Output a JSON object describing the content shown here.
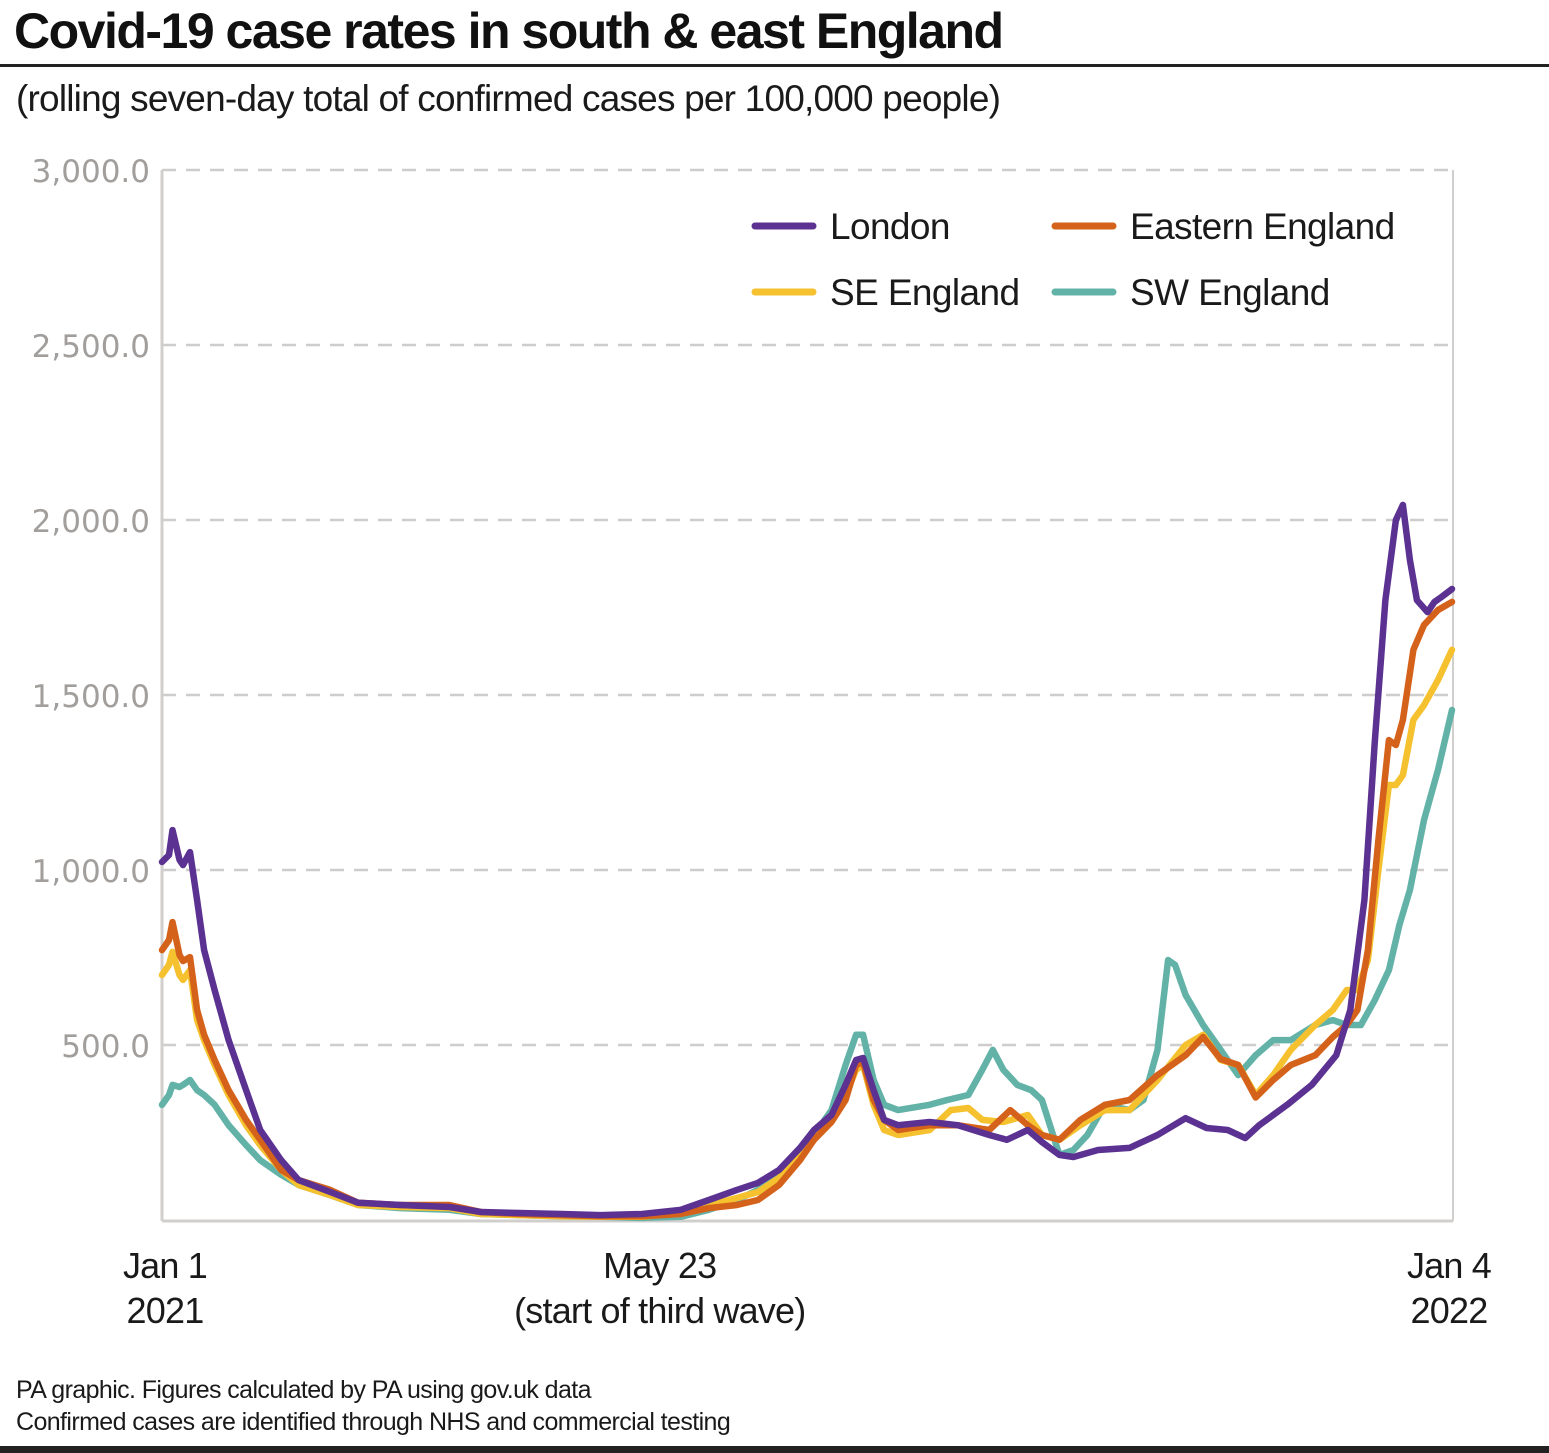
{
  "header": {
    "title": "Covid-19 case rates in south & east England",
    "subtitle": "(rolling seven-day total of confirmed cases per 100,000 people)"
  },
  "footer": {
    "line1": "PA graphic. Figures calculated by PA using gov.uk data",
    "line2": "Confirmed cases are identified through NHS and commercial testing"
  },
  "chart_data": {
    "type": "line",
    "title": "Covid-19 case rates in south & east England",
    "subtitle": "(rolling seven-day total of confirmed cases per 100,000 people)",
    "xlabel": "",
    "ylabel": "",
    "x_unit": "days since Jan 1 2021",
    "xlim": [
      0,
      368
    ],
    "ylim": [
      0,
      3000
    ],
    "grid": "horizontal dashed",
    "legend_position": "top-right",
    "y_ticks": [
      {
        "value": 500,
        "label": "500.0"
      },
      {
        "value": 1000,
        "label": "1,000.0"
      },
      {
        "value": 1500,
        "label": "1,500.0"
      },
      {
        "value": 2000,
        "label": "2,000.0"
      },
      {
        "value": 2500,
        "label": "2,500.0"
      },
      {
        "value": 3000,
        "label": "3,000.0"
      }
    ],
    "x_ticks": [
      {
        "value": 0,
        "line1": "Jan 1",
        "line2": "2021"
      },
      {
        "value": 142,
        "line1": "May 23",
        "line2": "(start of third wave)"
      },
      {
        "value": 368,
        "line1": "Jan 4",
        "line2": "2022"
      }
    ],
    "series": [
      {
        "name": "London",
        "color": "#5b3291",
        "points": [
          [
            0,
            1023
          ],
          [
            2,
            1043
          ],
          [
            3,
            1114
          ],
          [
            5,
            1029
          ],
          [
            6,
            1014
          ],
          [
            8,
            1051
          ],
          [
            10,
            914
          ],
          [
            12,
            771
          ],
          [
            15,
            657
          ],
          [
            19,
            514
          ],
          [
            24,
            371
          ],
          [
            28,
            257
          ],
          [
            34,
            171
          ],
          [
            39,
            114
          ],
          [
            48,
            80
          ],
          [
            56,
            49
          ],
          [
            68,
            43
          ],
          [
            82,
            37
          ],
          [
            91,
            23
          ],
          [
            102,
            20
          ],
          [
            114,
            17
          ],
          [
            125,
            14
          ],
          [
            137,
            17
          ],
          [
            148,
            29
          ],
          [
            156,
            57
          ],
          [
            164,
            86
          ],
          [
            170,
            106
          ],
          [
            176,
            143
          ],
          [
            182,
            206
          ],
          [
            186,
            257
          ],
          [
            191,
            300
          ],
          [
            195,
            386
          ],
          [
            198,
            457
          ],
          [
            200,
            463
          ],
          [
            203,
            371
          ],
          [
            206,
            286
          ],
          [
            210,
            271
          ],
          [
            219,
            280
          ],
          [
            227,
            271
          ],
          [
            236,
            243
          ],
          [
            241,
            229
          ],
          [
            247,
            257
          ],
          [
            251,
            223
          ],
          [
            256,
            186
          ],
          [
            260,
            180
          ],
          [
            267,
            200
          ],
          [
            276,
            206
          ],
          [
            284,
            243
          ],
          [
            292,
            291
          ],
          [
            298,
            263
          ],
          [
            304,
            257
          ],
          [
            309,
            234
          ],
          [
            313,
            271
          ],
          [
            321,
            329
          ],
          [
            328,
            386
          ],
          [
            335,
            471
          ],
          [
            339,
            600
          ],
          [
            343,
            914
          ],
          [
            346,
            1371
          ],
          [
            349,
            1771
          ],
          [
            352,
            2000
          ],
          [
            354,
            2043
          ],
          [
            356,
            1886
          ],
          [
            358,
            1771
          ],
          [
            361,
            1737
          ],
          [
            363,
            1766
          ],
          [
            365,
            1780
          ],
          [
            368,
            1803
          ]
        ]
      },
      {
        "name": "Eastern England",
        "color": "#d5621b",
        "points": [
          [
            0,
            771
          ],
          [
            2,
            800
          ],
          [
            3,
            851
          ],
          [
            5,
            757
          ],
          [
            6,
            740
          ],
          [
            8,
            751
          ],
          [
            10,
            600
          ],
          [
            12,
            529
          ],
          [
            15,
            457
          ],
          [
            19,
            371
          ],
          [
            24,
            286
          ],
          [
            28,
            229
          ],
          [
            34,
            143
          ],
          [
            39,
            114
          ],
          [
            48,
            86
          ],
          [
            56,
            49
          ],
          [
            68,
            43
          ],
          [
            82,
            43
          ],
          [
            91,
            23
          ],
          [
            102,
            17
          ],
          [
            114,
            14
          ],
          [
            125,
            11
          ],
          [
            137,
            11
          ],
          [
            148,
            17
          ],
          [
            156,
            34
          ],
          [
            164,
            43
          ],
          [
            170,
            57
          ],
          [
            176,
            100
          ],
          [
            182,
            171
          ],
          [
            186,
            229
          ],
          [
            191,
            280
          ],
          [
            195,
            343
          ],
          [
            198,
            443
          ],
          [
            200,
            451
          ],
          [
            203,
            343
          ],
          [
            206,
            286
          ],
          [
            210,
            257
          ],
          [
            219,
            271
          ],
          [
            227,
            271
          ],
          [
            236,
            257
          ],
          [
            242,
            314
          ],
          [
            247,
            271
          ],
          [
            251,
            243
          ],
          [
            256,
            229
          ],
          [
            262,
            286
          ],
          [
            269,
            329
          ],
          [
            276,
            343
          ],
          [
            284,
            414
          ],
          [
            292,
            471
          ],
          [
            297,
            523
          ],
          [
            302,
            460
          ],
          [
            307,
            443
          ],
          [
            312,
            350
          ],
          [
            317,
            400
          ],
          [
            322,
            443
          ],
          [
            329,
            471
          ],
          [
            334,
            523
          ],
          [
            338,
            557
          ],
          [
            341,
            600
          ],
          [
            344,
            771
          ],
          [
            347,
            1086
          ],
          [
            350,
            1371
          ],
          [
            352,
            1357
          ],
          [
            354,
            1429
          ],
          [
            357,
            1629
          ],
          [
            360,
            1700
          ],
          [
            364,
            1743
          ],
          [
            368,
            1766
          ]
        ]
      },
      {
        "name": "SE England",
        "color": "#f5c12e",
        "points": [
          [
            0,
            700
          ],
          [
            2,
            729
          ],
          [
            3,
            766
          ],
          [
            5,
            700
          ],
          [
            6,
            686
          ],
          [
            8,
            714
          ],
          [
            10,
            571
          ],
          [
            12,
            514
          ],
          [
            15,
            443
          ],
          [
            19,
            357
          ],
          [
            24,
            271
          ],
          [
            28,
            214
          ],
          [
            34,
            143
          ],
          [
            39,
            100
          ],
          [
            48,
            71
          ],
          [
            56,
            43
          ],
          [
            68,
            37
          ],
          [
            82,
            34
          ],
          [
            91,
            17
          ],
          [
            102,
            14
          ],
          [
            114,
            11
          ],
          [
            125,
            9
          ],
          [
            137,
            9
          ],
          [
            148,
            20
          ],
          [
            156,
            43
          ],
          [
            164,
            63
          ],
          [
            170,
            80
          ],
          [
            176,
            120
          ],
          [
            182,
            186
          ],
          [
            186,
            243
          ],
          [
            191,
            286
          ],
          [
            195,
            357
          ],
          [
            198,
            429
          ],
          [
            200,
            443
          ],
          [
            203,
            329
          ],
          [
            206,
            257
          ],
          [
            210,
            243
          ],
          [
            219,
            257
          ],
          [
            225,
            314
          ],
          [
            230,
            320
          ],
          [
            234,
            286
          ],
          [
            240,
            280
          ],
          [
            247,
            300
          ],
          [
            251,
            243
          ],
          [
            256,
            229
          ],
          [
            262,
            271
          ],
          [
            269,
            314
          ],
          [
            276,
            314
          ],
          [
            284,
            400
          ],
          [
            292,
            500
          ],
          [
            297,
            529
          ],
          [
            302,
            457
          ],
          [
            307,
            443
          ],
          [
            312,
            357
          ],
          [
            317,
            414
          ],
          [
            322,
            486
          ],
          [
            329,
            557
          ],
          [
            334,
            600
          ],
          [
            338,
            657
          ],
          [
            341,
            657
          ],
          [
            344,
            743
          ],
          [
            347,
            1000
          ],
          [
            350,
            1243
          ],
          [
            352,
            1243
          ],
          [
            354,
            1271
          ],
          [
            357,
            1429
          ],
          [
            360,
            1471
          ],
          [
            364,
            1543
          ],
          [
            368,
            1629
          ]
        ]
      },
      {
        "name": "SW England",
        "color": "#62b2a8",
        "points": [
          [
            0,
            329
          ],
          [
            2,
            357
          ],
          [
            3,
            386
          ],
          [
            5,
            380
          ],
          [
            6,
            386
          ],
          [
            8,
            400
          ],
          [
            10,
            371
          ],
          [
            12,
            357
          ],
          [
            15,
            329
          ],
          [
            19,
            271
          ],
          [
            24,
            214
          ],
          [
            28,
            171
          ],
          [
            34,
            129
          ],
          [
            39,
            100
          ],
          [
            48,
            71
          ],
          [
            56,
            43
          ],
          [
            68,
            34
          ],
          [
            82,
            29
          ],
          [
            91,
            17
          ],
          [
            102,
            14
          ],
          [
            114,
            11
          ],
          [
            125,
            9
          ],
          [
            137,
            6
          ],
          [
            148,
            9
          ],
          [
            156,
            29
          ],
          [
            164,
            57
          ],
          [
            170,
            86
          ],
          [
            176,
            129
          ],
          [
            182,
            186
          ],
          [
            186,
            243
          ],
          [
            191,
            314
          ],
          [
            195,
            443
          ],
          [
            198,
            529
          ],
          [
            200,
            529
          ],
          [
            203,
            400
          ],
          [
            206,
            329
          ],
          [
            210,
            314
          ],
          [
            219,
            329
          ],
          [
            224,
            343
          ],
          [
            230,
            357
          ],
          [
            234,
            429
          ],
          [
            237,
            486
          ],
          [
            240,
            429
          ],
          [
            244,
            386
          ],
          [
            248,
            371
          ],
          [
            251,
            343
          ],
          [
            256,
            186
          ],
          [
            260,
            200
          ],
          [
            264,
            243
          ],
          [
            269,
            329
          ],
          [
            276,
            314
          ],
          [
            280,
            343
          ],
          [
            284,
            486
          ],
          [
            287,
            743
          ],
          [
            289,
            729
          ],
          [
            292,
            643
          ],
          [
            297,
            557
          ],
          [
            302,
            486
          ],
          [
            307,
            414
          ],
          [
            312,
            471
          ],
          [
            317,
            514
          ],
          [
            322,
            514
          ],
          [
            329,
            557
          ],
          [
            334,
            571
          ],
          [
            338,
            557
          ],
          [
            342,
            557
          ],
          [
            346,
            629
          ],
          [
            350,
            714
          ],
          [
            353,
            843
          ],
          [
            356,
            943
          ],
          [
            360,
            1143
          ],
          [
            364,
            1286
          ],
          [
            368,
            1457
          ]
        ]
      }
    ]
  }
}
